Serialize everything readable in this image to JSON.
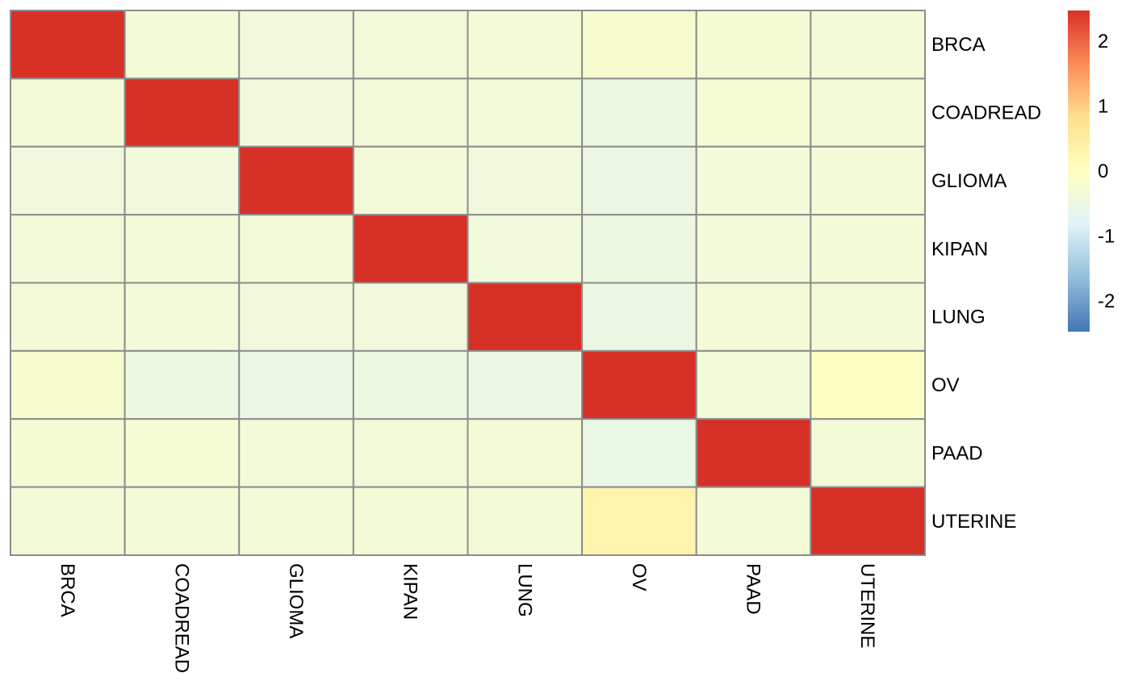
{
  "chart_data": {
    "type": "heatmap",
    "title": "",
    "xlabel": "",
    "ylabel": "",
    "rows": [
      "BRCA",
      "COADREAD",
      "GLIOMA",
      "KIPAN",
      "LUNG",
      "OV",
      "PAAD",
      "UTERINE"
    ],
    "columns": [
      "BRCA",
      "COADREAD",
      "GLIOMA",
      "KIPAN",
      "LUNG",
      "OV",
      "PAAD",
      "UTERINE"
    ],
    "values": [
      [
        2.47,
        -0.35,
        -0.4,
        -0.36,
        -0.32,
        -0.22,
        -0.3,
        -0.34
      ],
      [
        -0.35,
        2.47,
        -0.4,
        -0.38,
        -0.37,
        -0.5,
        -0.27,
        -0.35
      ],
      [
        -0.4,
        -0.4,
        2.47,
        -0.38,
        -0.41,
        -0.52,
        -0.37,
        -0.35
      ],
      [
        -0.36,
        -0.38,
        -0.38,
        2.47,
        -0.4,
        -0.47,
        -0.37,
        -0.33
      ],
      [
        -0.32,
        -0.37,
        -0.41,
        -0.4,
        2.47,
        -0.52,
        -0.32,
        -0.34
      ],
      [
        -0.22,
        -0.5,
        -0.52,
        -0.47,
        -0.52,
        2.47,
        -0.37,
        -0.05
      ],
      [
        -0.3,
        -0.27,
        -0.37,
        -0.37,
        -0.32,
        -0.55,
        2.47,
        -0.35
      ],
      [
        -0.34,
        -0.35,
        -0.35,
        -0.33,
        -0.34,
        0.3,
        -0.35,
        2.47
      ]
    ],
    "colorbar": {
      "range": [
        -2.47,
        2.47
      ],
      "ticks": [
        -2,
        -1,
        0,
        1,
        2
      ],
      "tick_labels": [
        "-2",
        "-1",
        "0",
        "1",
        "2"
      ],
      "colors": [
        "#4575B4",
        "#91BFDB",
        "#E0F3F8",
        "#FFFFBF",
        "#FEE090",
        "#FC8D59",
        "#D73027"
      ]
    },
    "grid": true,
    "border_color": "#8c8c8c"
  }
}
